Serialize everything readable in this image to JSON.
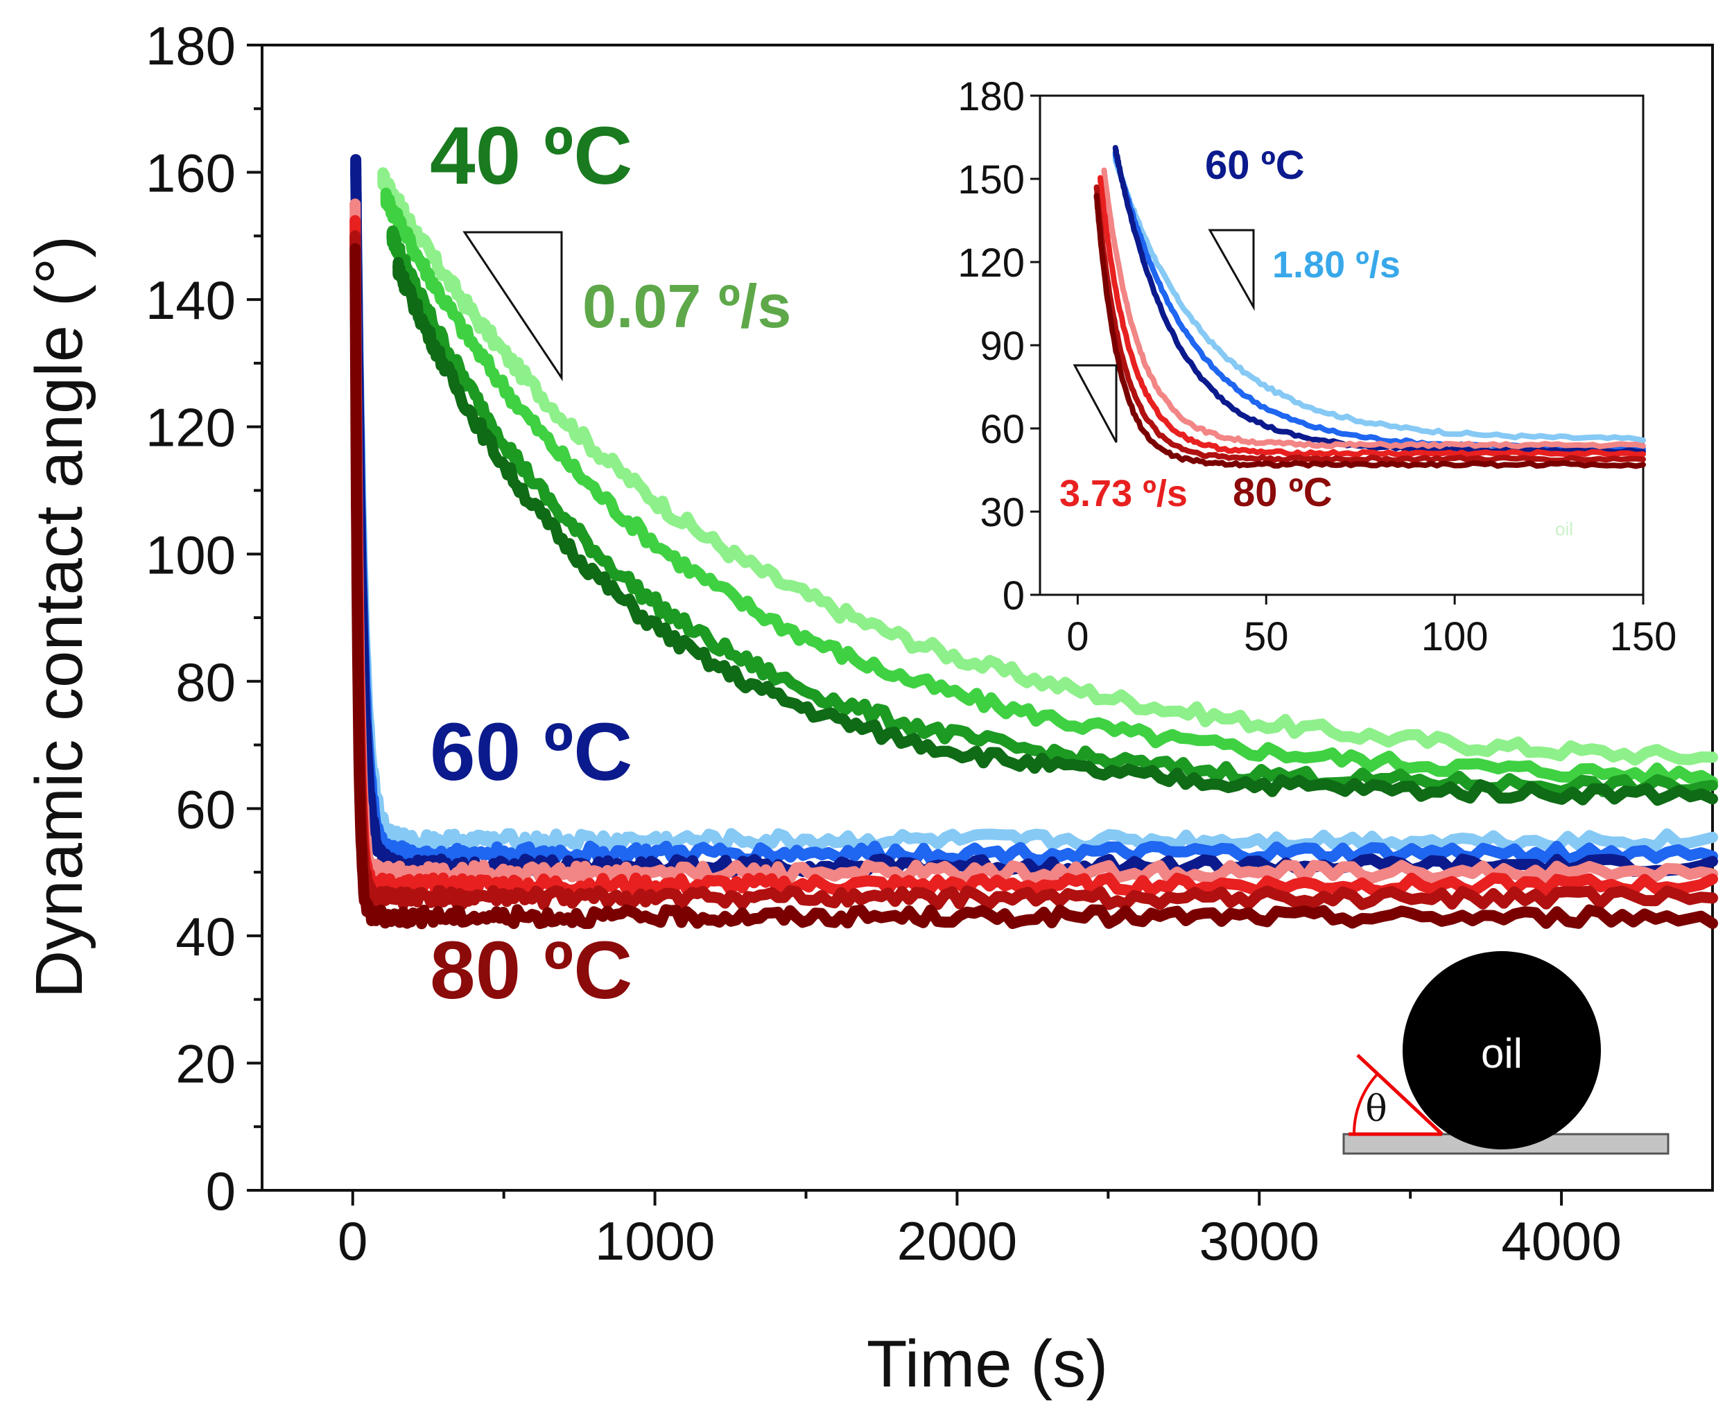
{
  "chart_data": [
    {
      "id": "main",
      "type": "line",
      "xlabel": "Time (s)",
      "ylabel": "Dynamic contact angle (°)",
      "xlim": [
        -300,
        4500
      ],
      "ylim": [
        0,
        180
      ],
      "xticks": [
        0,
        1000,
        2000,
        3000,
        4000
      ],
      "xticks_minor": [
        500,
        1500,
        2500,
        3500
      ],
      "yticks": [
        0,
        20,
        40,
        60,
        80,
        100,
        120,
        140,
        160,
        180
      ],
      "yticks_minor": [
        10,
        30,
        50,
        70,
        90,
        110,
        130,
        150,
        170
      ],
      "series": [
        {
          "name": "40 °C run 1",
          "group": "40 °C",
          "color": "#8ef08a",
          "start": [
            100,
            159
          ],
          "plateau": 66,
          "tau": 1150
        },
        {
          "name": "40 °C run 2",
          "group": "40 °C",
          "color": "#3fd142",
          "start": [
            110,
            156
          ],
          "plateau": 64,
          "tau": 1000
        },
        {
          "name": "40 °C run 3",
          "group": "40 °C",
          "color": "#1c9a22",
          "start": [
            130,
            150
          ],
          "plateau": 63,
          "tau": 800
        },
        {
          "name": "40 °C run 4",
          "group": "40 °C",
          "color": "#0f6b15",
          "start": [
            150,
            145
          ],
          "plateau": 62,
          "tau": 750
        },
        {
          "name": "60 °C run 1",
          "group": "60 °C",
          "color": "#86c9f5",
          "start": [
            10,
            160
          ],
          "plateau": 55,
          "tau": 25
        },
        {
          "name": "60 °C run 2",
          "group": "60 °C",
          "color": "#1f66f0",
          "start": [
            10,
            161
          ],
          "plateau": 53,
          "tau": 22
        },
        {
          "name": "60 °C run 3",
          "group": "60 °C",
          "color": "#0b1a8c",
          "start": [
            10,
            162
          ],
          "plateau": 51,
          "tau": 20
        },
        {
          "name": "80 °C run 1",
          "group": "80 °C",
          "color": "#f28585",
          "start": [
            8,
            155
          ],
          "plateau": 50,
          "tau": 12
        },
        {
          "name": "80 °C run 2",
          "group": "80 °C",
          "color": "#e82020",
          "start": [
            8,
            152
          ],
          "plateau": 48,
          "tau": 11
        },
        {
          "name": "80 °C run 3",
          "group": "80 °C",
          "color": "#b01010",
          "start": [
            8,
            150
          ],
          "plateau": 46,
          "tau": 10
        },
        {
          "name": "80 °C run 4",
          "group": "80 °C",
          "color": "#7a0000",
          "start": [
            8,
            148
          ],
          "plateau": 43,
          "tau": 9
        }
      ],
      "annotations": {
        "t40": {
          "text": "40 ºC",
          "color": "#1a7a1f"
        },
        "rate40": {
          "text": "0.07 º/s",
          "color": "#5ea84a"
        },
        "t60": {
          "text": "60 ºC",
          "color": "#0b1a8c"
        },
        "t80": {
          "text": "80 ºC",
          "color": "#8b0a0a"
        }
      },
      "schematic": {
        "drop_label": "oil",
        "angle_label": "θ"
      }
    },
    {
      "id": "inset",
      "type": "line",
      "xlim": [
        -10,
        150
      ],
      "ylim": [
        0,
        180
      ],
      "xticks": [
        0,
        50,
        100,
        150
      ],
      "yticks": [
        0,
        30,
        60,
        90,
        120,
        150,
        180
      ],
      "series": [
        {
          "name": "60 °C run 1",
          "group": "60 °C",
          "color": "#86c9f5",
          "start": [
            10,
            157
          ],
          "plateau": 56,
          "tau": 24
        },
        {
          "name": "60 °C run 2",
          "group": "60 °C",
          "color": "#1f66f0",
          "start": [
            10,
            159
          ],
          "plateau": 53,
          "tau": 20
        },
        {
          "name": "60 °C run 3",
          "group": "60 °C",
          "color": "#0b1a8c",
          "start": [
            10,
            161
          ],
          "plateau": 52,
          "tau": 16
        },
        {
          "name": "80 °C run 1",
          "group": "80 °C",
          "color": "#f28585",
          "start": [
            7,
            153
          ],
          "plateau": 54,
          "tau": 9
        },
        {
          "name": "80 °C run 2",
          "group": "80 °C",
          "color": "#e82020",
          "start": [
            6,
            150
          ],
          "plateau": 51,
          "tau": 8
        },
        {
          "name": "80 °C run 3",
          "group": "80 °C",
          "color": "#b01010",
          "start": [
            5,
            147
          ],
          "plateau": 49,
          "tau": 7
        },
        {
          "name": "80 °C run 4",
          "group": "80 °C",
          "color": "#7a0000",
          "start": [
            5,
            144
          ],
          "plateau": 47,
          "tau": 6
        }
      ],
      "annotations": {
        "t60": {
          "text": "60 ºC",
          "color": "#0b1a8c"
        },
        "rate60": {
          "text": "1.80 º/s",
          "color": "#38a8ea"
        },
        "rate80": {
          "text": "3.73 º/s",
          "color": "#e82020"
        },
        "t80": {
          "text": "80 ºC",
          "color": "#8b0a0a"
        },
        "watermark": {
          "text": "oil",
          "color": "#c8f2c8"
        }
      }
    }
  ]
}
